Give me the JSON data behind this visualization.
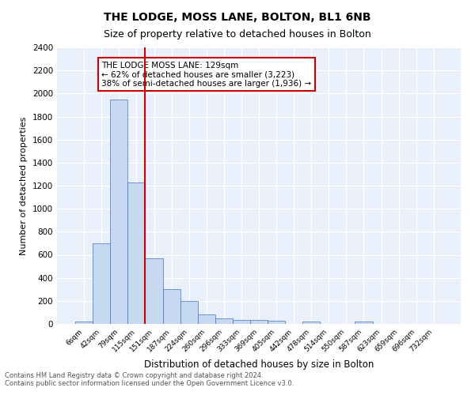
{
  "title1": "THE LODGE, MOSS LANE, BOLTON, BL1 6NB",
  "title2": "Size of property relative to detached houses in Bolton",
  "xlabel": "Distribution of detached houses by size in Bolton",
  "ylabel": "Number of detached properties",
  "bar_labels": [
    "6sqm",
    "42sqm",
    "79sqm",
    "115sqm",
    "151sqm",
    "187sqm",
    "224sqm",
    "260sqm",
    "296sqm",
    "333sqm",
    "369sqm",
    "405sqm",
    "442sqm",
    "478sqm",
    "514sqm",
    "550sqm",
    "587sqm",
    "623sqm",
    "659sqm",
    "696sqm",
    "732sqm"
  ],
  "bar_values": [
    20,
    700,
    1950,
    1230,
    570,
    305,
    200,
    80,
    45,
    35,
    35,
    25,
    0,
    20,
    0,
    0,
    20,
    0,
    0,
    0,
    0
  ],
  "bar_color": "#c6d9f0",
  "bar_edge_color": "#4472c4",
  "vline_x": 3.5,
  "vline_color": "#cc0000",
  "annotation_text": "THE LODGE MOSS LANE: 129sqm\n← 62% of detached houses are smaller (3,223)\n38% of semi-detached houses are larger (1,936) →",
  "annotation_box_color": "#ffffff",
  "annotation_box_edge": "#cc0000",
  "ylim": [
    0,
    2400
  ],
  "yticks": [
    0,
    200,
    400,
    600,
    800,
    1000,
    1200,
    1400,
    1600,
    1800,
    2000,
    2200,
    2400
  ],
  "footnote": "Contains HM Land Registry data © Crown copyright and database right 2024.\nContains public sector information licensed under the Open Government Licence v3.0.",
  "bg_color": "#eaf0fb",
  "plot_bg_color": "#eaf0fb",
  "grid_color": "#ffffff"
}
